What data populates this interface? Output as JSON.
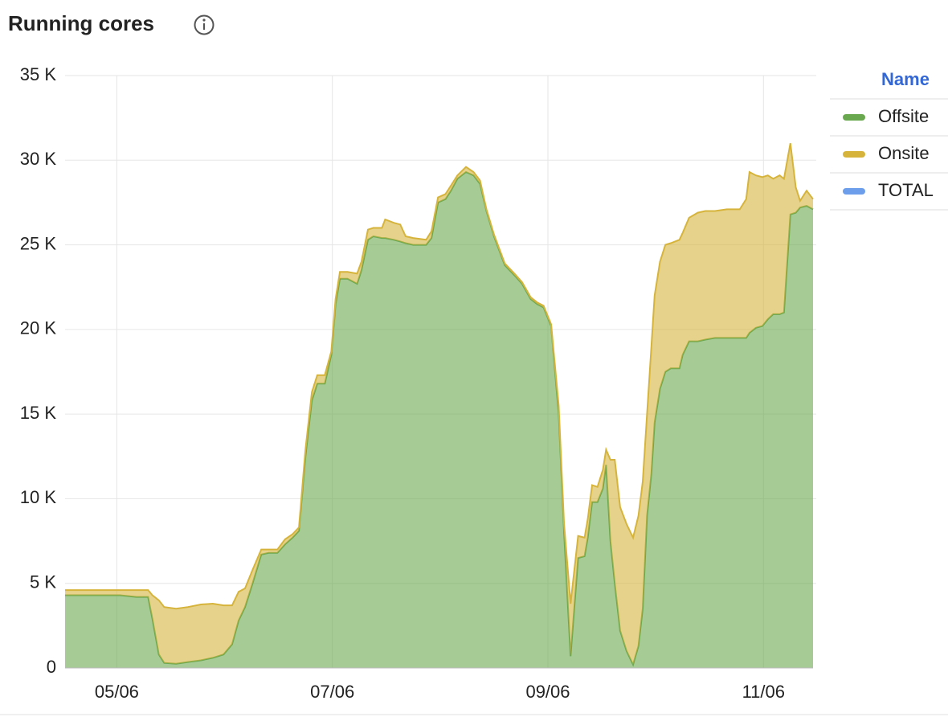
{
  "chart_data": {
    "type": "stacked-area",
    "title": "Running cores",
    "legend_title": "Name",
    "legend": "right",
    "x": [
      4.52,
      4.81,
      5.03,
      5.18,
      5.29,
      5.33,
      5.39,
      5.44,
      5.55,
      5.66,
      5.78,
      5.89,
      5.99,
      6.07,
      6.13,
      6.19,
      6.26,
      6.34,
      6.41,
      6.49,
      6.56,
      6.63,
      6.69,
      6.75,
      6.81,
      6.86,
      6.93,
      6.99,
      7.03,
      7.07,
      7.14,
      7.23,
      7.27,
      7.33,
      7.38,
      7.46,
      7.49,
      7.57,
      7.63,
      7.68,
      7.75,
      7.87,
      7.92,
      7.98,
      8.05,
      8.1,
      8.16,
      8.24,
      8.31,
      8.37,
      8.43,
      8.5,
      8.6,
      8.69,
      8.76,
      8.84,
      8.9,
      8.96,
      9.03,
      9.1,
      9.15,
      9.21,
      9.28,
      9.34,
      9.37,
      9.41,
      9.46,
      9.51,
      9.54,
      9.58,
      9.62,
      9.67,
      9.73,
      9.79,
      9.84,
      9.88,
      9.92,
      9.96,
      9.99,
      10.04,
      10.09,
      10.14,
      10.22,
      10.25,
      10.31,
      10.39,
      10.46,
      10.55,
      10.66,
      10.78,
      10.84,
      10.87,
      10.93,
      10.99,
      11.04,
      11.09,
      11.15,
      11.19,
      11.25,
      11.3,
      11.34,
      11.4,
      11.46
    ],
    "series": [
      {
        "name": "Offsite",
        "color": "#6aa84f",
        "values": [
          4.3,
          4.3,
          4.3,
          4.2,
          4.2,
          2.9,
          0.8,
          0.3,
          0.25,
          0.35,
          0.45,
          0.6,
          0.8,
          1.4,
          2.8,
          3.6,
          5.0,
          6.7,
          6.8,
          6.8,
          7.3,
          7.7,
          8.1,
          12.5,
          15.8,
          16.8,
          16.8,
          18.5,
          21.5,
          23.0,
          23.0,
          22.7,
          23.5,
          25.3,
          25.5,
          25.4,
          25.4,
          25.3,
          25.2,
          25.1,
          25.0,
          25.0,
          25.4,
          27.5,
          27.7,
          28.2,
          28.9,
          29.3,
          29.1,
          28.6,
          27.0,
          25.5,
          23.8,
          23.2,
          22.7,
          21.8,
          21.5,
          21.3,
          20.2,
          15.0,
          8.0,
          0.7,
          6.5,
          6.6,
          7.7,
          9.8,
          9.8,
          10.6,
          12.0,
          7.5,
          5.0,
          2.2,
          1.0,
          0.2,
          1.3,
          3.5,
          9.0,
          11.5,
          14.5,
          16.5,
          17.5,
          17.7,
          17.7,
          18.5,
          19.3,
          19.3,
          19.4,
          19.5,
          19.5,
          19.5,
          19.5,
          19.8,
          20.1,
          20.2,
          20.6,
          20.9,
          20.9,
          21.0,
          26.8,
          26.9,
          27.2,
          27.3,
          27.1
        ]
      },
      {
        "name": "Onsite",
        "color": "#d6b43c",
        "values": [
          0.3,
          0.3,
          0.3,
          0.4,
          0.4,
          1.4,
          3.2,
          3.3,
          3.25,
          3.25,
          3.3,
          3.2,
          2.9,
          2.3,
          1.7,
          1.1,
          0.8,
          0.3,
          0.2,
          0.2,
          0.3,
          0.2,
          0.2,
          0.4,
          0.5,
          0.5,
          0.5,
          0.2,
          0.3,
          0.4,
          0.4,
          0.6,
          0.5,
          0.6,
          0.5,
          0.6,
          1.1,
          1.0,
          1.0,
          0.4,
          0.4,
          0.3,
          0.4,
          0.3,
          0.3,
          0.3,
          0.2,
          0.3,
          0.2,
          0.2,
          0.1,
          0.1,
          0.1,
          0.1,
          0.1,
          0.1,
          0.1,
          0.1,
          0.1,
          0.5,
          0.5,
          3.1,
          1.3,
          1.1,
          1.1,
          1.0,
          0.9,
          1.1,
          0.9,
          4.8,
          7.3,
          7.3,
          7.5,
          7.5,
          7.7,
          7.5,
          6.0,
          7.5,
          7.5,
          7.5,
          7.5,
          7.4,
          7.6,
          7.2,
          7.3,
          7.6,
          7.6,
          7.5,
          7.6,
          7.6,
          8.2,
          9.5,
          9.0,
          8.8,
          8.5,
          8.0,
          8.2,
          7.9,
          4.2,
          1.5,
          0.4,
          0.9,
          0.6
        ]
      },
      {
        "name": "TOTAL",
        "color": "#6d9eeb"
      }
    ],
    "xlim": [
      4.52,
      11.46
    ],
    "xticks": [
      {
        "value": 5,
        "label": "05/06"
      },
      {
        "value": 7,
        "label": "07/06"
      },
      {
        "value": 9,
        "label": "09/06"
      },
      {
        "value": 11,
        "label": "11/06"
      }
    ],
    "ylim": [
      0,
      35
    ],
    "yticks": [
      0,
      {
        "value": 5,
        "label": "5 K"
      },
      {
        "value": 10,
        "label": "10 K"
      },
      {
        "value": 15,
        "label": "15 K"
      },
      {
        "value": 20,
        "label": "20 K"
      },
      {
        "value": 25,
        "label": "25 K"
      },
      {
        "value": 30,
        "label": "30 K"
      },
      {
        "value": 35,
        "label": "35 K"
      }
    ],
    "grid": true
  }
}
